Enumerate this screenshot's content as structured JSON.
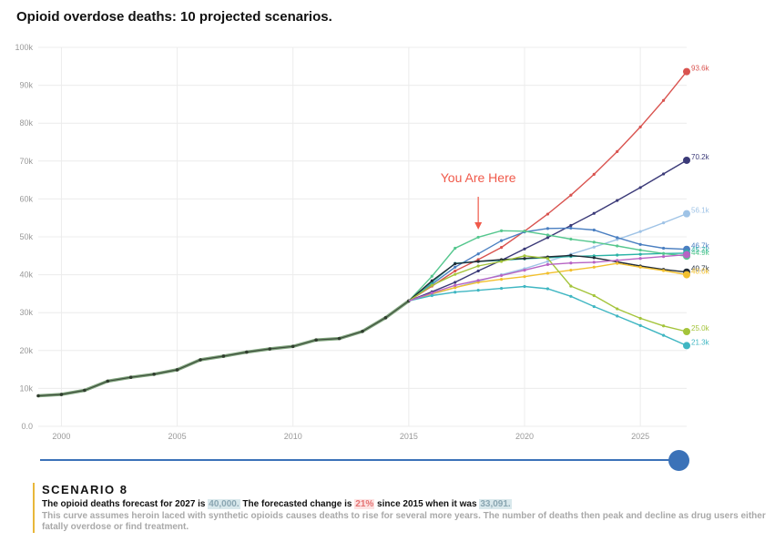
{
  "title": "Opioid overdose deaths: 10 projected scenarios.",
  "chart_data": {
    "type": "line",
    "title": "Opioid overdose deaths: 10 projected scenarios.",
    "xlim": [
      1999,
      2027
    ],
    "ylim": [
      0,
      100000
    ],
    "grid": true,
    "x_ticks": [
      2000,
      2005,
      2010,
      2015,
      2020,
      2025
    ],
    "y_ticks": [
      0,
      10000,
      20000,
      30000,
      40000,
      50000,
      60000,
      70000,
      80000,
      90000,
      100000
    ],
    "y_tick_labels": [
      "0.0",
      "10k",
      "20k",
      "30k",
      "40k",
      "50k",
      "60k",
      "70k",
      "80k",
      "90k",
      "100k"
    ],
    "x_tick_labels": [
      "2000",
      "2005",
      "2010",
      "2015",
      "2020",
      "2025"
    ],
    "annotation": {
      "text": "You Are Here",
      "x": 2018,
      "color": "#f0594a"
    },
    "history": {
      "x": [
        1999,
        2000,
        2001,
        2002,
        2003,
        2004,
        2005,
        2006,
        2007,
        2008,
        2009,
        2010,
        2011,
        2012,
        2013,
        2014,
        2015
      ],
      "values": [
        8050,
        8407,
        9496,
        11920,
        12940,
        13756,
        14918,
        17545,
        18516,
        19582,
        20422,
        21089,
        22784,
        23166,
        25052,
        28647,
        33091
      ]
    },
    "series": [
      {
        "color": "#d9534f",
        "label": "93.6k",
        "x": [
          2015,
          2016,
          2017,
          2018,
          2019,
          2020,
          2021,
          2022,
          2023,
          2024,
          2025,
          2026,
          2027
        ],
        "values": [
          33091,
          37000,
          41000,
          44000,
          47200,
          51500,
          56000,
          61000,
          66500,
          72500,
          79000,
          86000,
          93600
        ]
      },
      {
        "color": "#3b3a78",
        "label": "70.2k",
        "x": [
          2015,
          2016,
          2017,
          2018,
          2019,
          2020,
          2021,
          2022,
          2023,
          2024,
          2025,
          2026,
          2027
        ],
        "values": [
          33091,
          35500,
          38000,
          41000,
          43800,
          46800,
          49800,
          53000,
          56200,
          59600,
          63000,
          66600,
          70200
        ]
      },
      {
        "color": "#9fc3e6",
        "label": "56.1k",
        "x": [
          2015,
          2016,
          2017,
          2018,
          2019,
          2020,
          2021,
          2022,
          2023,
          2024,
          2025,
          2026,
          2027
        ],
        "values": [
          33091,
          34800,
          36600,
          38300,
          40000,
          41600,
          43500,
          45400,
          47300,
          49300,
          51400,
          53700,
          56100
        ]
      },
      {
        "color": "#4a7fc1",
        "label": "46.7k",
        "x": [
          2015,
          2016,
          2017,
          2018,
          2019,
          2020,
          2021,
          2022,
          2023,
          2024,
          2025,
          2026,
          2027
        ],
        "values": [
          33091,
          37500,
          42000,
          45500,
          49000,
          51300,
          52200,
          52300,
          51800,
          49800,
          48000,
          47000,
          46700
        ]
      },
      {
        "color": "#2bb3a6",
        "label": "45.7k",
        "x": [
          2015,
          2016,
          2017,
          2018,
          2019,
          2020,
          2021,
          2022,
          2023,
          2024,
          2025,
          2026,
          2027
        ],
        "values": [
          33091,
          38000,
          43000,
          43500,
          43800,
          44200,
          44500,
          44800,
          45000,
          45200,
          45400,
          45600,
          45700
        ]
      },
      {
        "color": "#55c78e",
        "label": "44.9k",
        "x": [
          2015,
          2016,
          2017,
          2018,
          2019,
          2020,
          2021,
          2022,
          2023,
          2024,
          2025,
          2026,
          2027
        ],
        "values": [
          33091,
          39600,
          47000,
          49900,
          51600,
          51500,
          50500,
          49400,
          48600,
          47600,
          46500,
          45600,
          44900
        ]
      },
      {
        "color": "#222c37",
        "label": "40.7k",
        "x": [
          2015,
          2016,
          2017,
          2018,
          2019,
          2020,
          2021,
          2022,
          2023,
          2024,
          2025,
          2026,
          2027
        ],
        "values": [
          33091,
          38400,
          42900,
          43500,
          44000,
          44300,
          44700,
          45100,
          44500,
          43400,
          42300,
          41400,
          40700
        ]
      },
      {
        "color": "#f2c02e",
        "label": "40.0k",
        "x": [
          2015,
          2016,
          2017,
          2018,
          2019,
          2020,
          2021,
          2022,
          2023,
          2024,
          2025,
          2026,
          2027
        ],
        "values": [
          33091,
          35000,
          36600,
          38000,
          38800,
          39500,
          40400,
          41200,
          42000,
          43000,
          42000,
          41100,
          40000
        ]
      },
      {
        "color": "#a4c43a",
        "label": "25.0k",
        "x": [
          2015,
          2016,
          2017,
          2018,
          2019,
          2020,
          2021,
          2022,
          2023,
          2024,
          2025,
          2026,
          2027
        ],
        "values": [
          33091,
          37200,
          40100,
          42300,
          43500,
          45000,
          44300,
          37000,
          34500,
          31000,
          28500,
          26500,
          25000
        ]
      },
      {
        "color": "#3fb6c2",
        "label": "21.3k",
        "x": [
          2015,
          2016,
          2017,
          2018,
          2019,
          2020,
          2021,
          2022,
          2023,
          2024,
          2025,
          2026,
          2027
        ],
        "values": [
          33091,
          34500,
          35400,
          35900,
          36400,
          36900,
          36300,
          34300,
          31600,
          29100,
          26600,
          24000,
          21300
        ]
      },
      {
        "color": "#b764c4",
        "label": "",
        "x": [
          2015,
          2016,
          2017,
          2018,
          2019,
          2020,
          2021,
          2022,
          2023,
          2024,
          2025,
          2026,
          2027
        ],
        "values": [
          33091,
          35200,
          37200,
          38500,
          39800,
          41200,
          42700,
          43100,
          43300,
          43800,
          44300,
          44800,
          45300
        ]
      }
    ]
  },
  "slider": {
    "value": 8,
    "max": 8,
    "color": "#3b72b8"
  },
  "scenario": {
    "title": "SCENARIO 8",
    "text_1": "The opioid deaths forecast for 2027 is ",
    "forecast": "40,000.",
    "text_2": " The forecasted change is ",
    "change": "21%",
    "text_3": " since 2015 when it was ",
    "base": "33,091.",
    "description": "This curve assumes heroin laced with synthetic opioids causes deaths to rise for several more years. The number of deaths then peak and decline as drug users either fatally overdose or find treatment."
  }
}
